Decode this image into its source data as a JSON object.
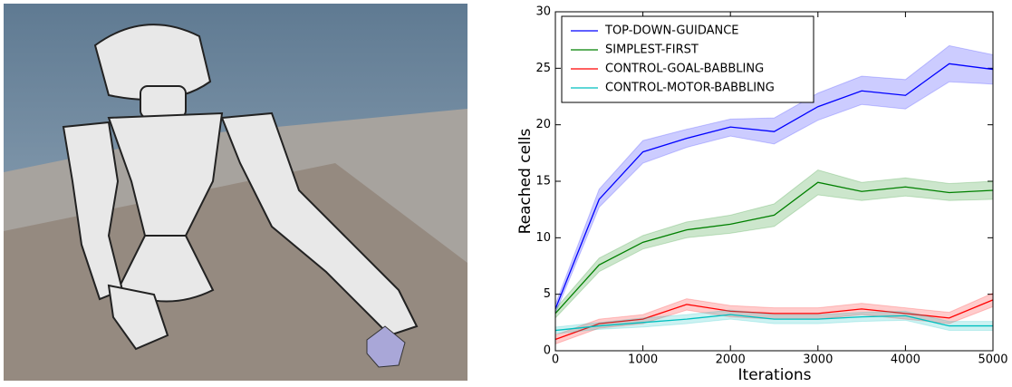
{
  "chart_data": {
    "type": "line",
    "x_label": "Iterations",
    "y_label": "Reached cells",
    "x": [
      0,
      500,
      1000,
      1500,
      2000,
      2500,
      3000,
      3500,
      4000,
      4500,
      5000
    ],
    "xlim": [
      0,
      5000
    ],
    "xticks": [
      0,
      1000,
      2000,
      3000,
      4000,
      5000
    ],
    "ylim": [
      0,
      30
    ],
    "yticks": [
      0,
      5,
      10,
      15,
      20,
      25,
      30
    ],
    "legend": "upper left",
    "series": [
      {
        "name": "TOP-DOWN-GUIDANCE",
        "color": "#0000ff",
        "values": [
          3.7,
          13.4,
          17.6,
          18.8,
          19.8,
          19.4,
          21.6,
          23.0,
          22.6,
          25.4,
          24.9
        ],
        "lower": [
          3.3,
          12.7,
          16.6,
          18.0,
          19.0,
          18.3,
          20.4,
          21.8,
          21.4,
          23.8,
          23.6
        ],
        "upper": [
          4.1,
          14.3,
          18.6,
          19.6,
          20.5,
          20.6,
          22.8,
          24.3,
          24.0,
          27.0,
          26.2
        ]
      },
      {
        "name": "SIMPLEST-FIRST",
        "color": "#008000",
        "values": [
          3.3,
          7.6,
          9.6,
          10.7,
          11.2,
          12.0,
          14.9,
          14.1,
          14.5,
          14.0,
          14.2
        ],
        "lower": [
          2.9,
          7.0,
          9.0,
          10.0,
          10.4,
          11.0,
          13.8,
          13.3,
          13.7,
          13.3,
          13.4
        ],
        "upper": [
          3.7,
          8.2,
          10.2,
          11.4,
          12.0,
          13.0,
          16.0,
          14.9,
          15.3,
          14.8,
          15.0
        ]
      },
      {
        "name": "CONTROL-GOAL-BABBLING",
        "color": "#ff0000",
        "values": [
          1.0,
          2.4,
          2.8,
          4.1,
          3.5,
          3.3,
          3.3,
          3.7,
          3.3,
          2.9,
          4.5
        ],
        "lower": [
          0.6,
          2.0,
          2.4,
          3.6,
          3.0,
          2.8,
          2.8,
          3.2,
          2.8,
          2.4,
          3.9
        ],
        "upper": [
          1.4,
          2.8,
          3.2,
          4.6,
          4.0,
          3.8,
          3.8,
          4.2,
          3.8,
          3.4,
          5.1
        ]
      },
      {
        "name": "CONTROL-MOTOR-BABBLING",
        "color": "#00bfbf",
        "values": [
          1.8,
          2.2,
          2.5,
          2.8,
          3.2,
          2.8,
          2.8,
          3.0,
          3.1,
          2.2,
          2.2
        ],
        "lower": [
          1.5,
          1.9,
          2.1,
          2.4,
          2.8,
          2.4,
          2.4,
          2.6,
          2.7,
          1.8,
          1.8
        ],
        "upper": [
          2.1,
          2.5,
          2.9,
          3.2,
          3.6,
          3.2,
          3.2,
          3.4,
          3.5,
          2.6,
          2.6
        ]
      }
    ]
  }
}
